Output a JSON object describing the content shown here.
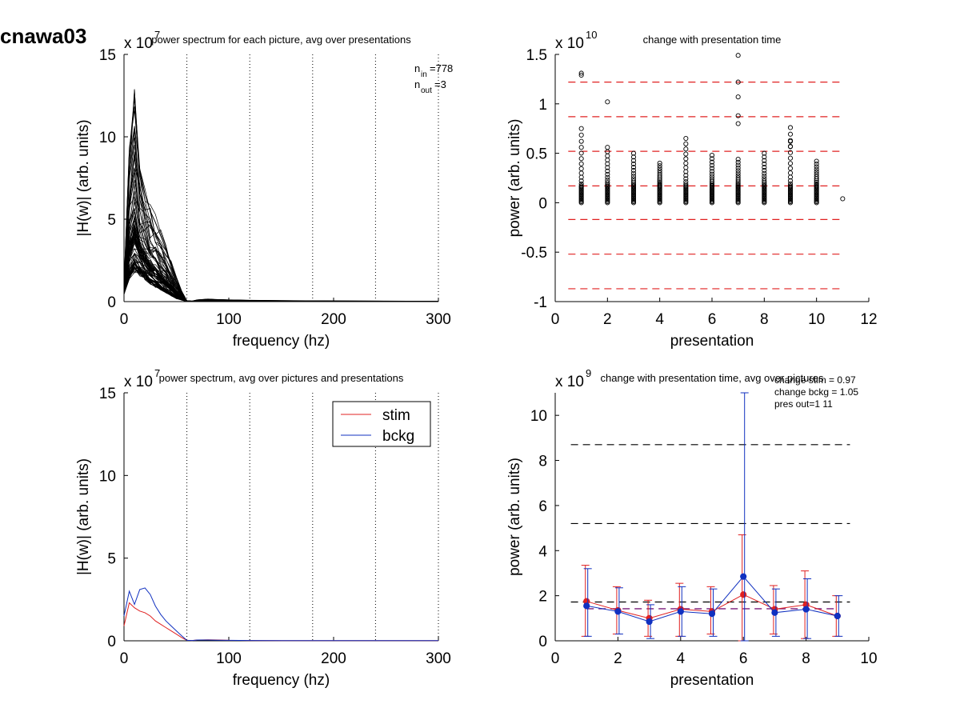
{
  "figure": {
    "title": "cnawa03"
  },
  "chart_data": [
    {
      "id": "p1",
      "type": "line",
      "title": "power spectrum for each picture, avg over presentations",
      "xlabel": "frequency (hz)",
      "ylabel": "|H(w)| (arb. units)",
      "yexp": "x 10^7",
      "yexp_base": "x 10",
      "yexp_power": "7",
      "xlim": [
        0,
        300
      ],
      "ylim": [
        0,
        15
      ],
      "xticks": [
        0,
        100,
        200,
        300
      ],
      "yticks": [
        0,
        5,
        10,
        15
      ],
      "vlines": [
        60,
        120,
        180,
        240,
        300
      ],
      "annotations": {
        "n_in": "n_in=778",
        "n_out": "n_out=3"
      },
      "annotation_parts": {
        "nin_base": "n",
        "nin_sub": "in",
        "nin_val": "=778",
        "nout_base": "n",
        "nout_sub": "out",
        "nout_val": "=3"
      },
      "series_count": 778,
      "freq": [
        0,
        5,
        10,
        15,
        20,
        25,
        30,
        35,
        40,
        45,
        50,
        55,
        60,
        65,
        70,
        80,
        90,
        100,
        120,
        150,
        200,
        250,
        300
      ],
      "envelope": {
        "max": [
          1.0,
          9.0,
          12.4,
          8.0,
          6.5,
          5.5,
          4.8,
          4.0,
          3.2,
          2.3,
          1.4,
          0.6,
          0.05,
          0.03,
          0.1,
          0.15,
          0.12,
          0.1,
          0.08,
          0.06,
          0.04,
          0.03,
          0.02
        ],
        "median": [
          0.5,
          1.5,
          2.0,
          1.8,
          1.5,
          1.2,
          1.0,
          0.8,
          0.6,
          0.4,
          0.2,
          0.1,
          0.01,
          0.01,
          0.03,
          0.04,
          0.03,
          0.02,
          0.02,
          0.01,
          0.01,
          0.01,
          0.01
        ]
      }
    },
    {
      "id": "p2",
      "type": "scatter",
      "title": "change with presentation time",
      "xlabel": "presentation",
      "ylabel": "power (arb. units)",
      "yexp": "x 10^10",
      "yexp_base": "x 10",
      "yexp_power": "10",
      "xlim": [
        0,
        12
      ],
      "ylim": [
        -1,
        1.5
      ],
      "xticks": [
        0,
        2,
        4,
        6,
        8,
        10,
        12
      ],
      "yticks": [
        -1,
        -0.5,
        0,
        0.5,
        1,
        1.5
      ],
      "hlines": [
        -0.87,
        -0.52,
        -0.17,
        0.17,
        0.52,
        0.87,
        1.22
      ],
      "hline_color": "#e02020",
      "points": [
        {
          "x": 1,
          "max": 0.75,
          "outliers": [
            1.29,
            1.31
          ]
        },
        {
          "x": 2,
          "max": 0.56,
          "outliers": [
            1.02
          ]
        },
        {
          "x": 3,
          "max": 0.5,
          "outliers": []
        },
        {
          "x": 4,
          "max": 0.4,
          "outliers": []
        },
        {
          "x": 5,
          "max": 0.65,
          "outliers": []
        },
        {
          "x": 6,
          "max": 0.48,
          "outliers": []
        },
        {
          "x": 7,
          "max": 0.44,
          "outliers": [
            1.49,
            1.22,
            1.07,
            0.88,
            0.8
          ]
        },
        {
          "x": 8,
          "max": 0.5,
          "outliers": []
        },
        {
          "x": 9,
          "max": 0.76,
          "outliers": [
            0.62,
            0.57
          ]
        },
        {
          "x": 10,
          "max": 0.42,
          "outliers": []
        },
        {
          "x": 11,
          "max": 0.04,
          "outliers": []
        }
      ]
    },
    {
      "id": "p3",
      "type": "line",
      "title": "power spectrum, avg over pictures and presentations",
      "xlabel": "frequency (hz)",
      "ylabel": "|H(w)| (arb. units)",
      "yexp": "x 10^7",
      "yexp_base": "x 10",
      "yexp_power": "7",
      "xlim": [
        0,
        300
      ],
      "ylim": [
        0,
        15
      ],
      "xticks": [
        0,
        100,
        200,
        300
      ],
      "yticks": [
        0,
        5,
        10,
        15
      ],
      "vlines": [
        60,
        120,
        180,
        240,
        300
      ],
      "legend_position": "top-right",
      "x": [
        0,
        5,
        10,
        15,
        20,
        25,
        30,
        35,
        40,
        45,
        50,
        55,
        60,
        65,
        70,
        80,
        90,
        100,
        120,
        150,
        200,
        250,
        300
      ],
      "series": [
        {
          "name": "stim",
          "color": "#e02020",
          "values": [
            0.9,
            2.3,
            2.0,
            1.8,
            1.7,
            1.5,
            1.2,
            1.0,
            0.8,
            0.6,
            0.4,
            0.2,
            0.03,
            0.02,
            0.05,
            0.06,
            0.05,
            0.03,
            0.02,
            0.01,
            0.01,
            0.01,
            0.01
          ]
        },
        {
          "name": "bckg",
          "color": "#1030c0",
          "values": [
            1.5,
            3.0,
            2.2,
            3.1,
            3.2,
            2.8,
            2.1,
            1.6,
            1.2,
            0.9,
            0.6,
            0.3,
            0.03,
            0.02,
            0.05,
            0.05,
            0.04,
            0.03,
            0.02,
            0.01,
            0.01,
            0.01,
            0.01
          ]
        }
      ]
    },
    {
      "id": "p4",
      "type": "line",
      "title": "change with presentation time, avg over pictures",
      "xlabel": "presentation",
      "ylabel": "power (arb. units)",
      "yexp": "x 10^9",
      "yexp_base": "x 10",
      "yexp_power": "9",
      "xlim": [
        0,
        10
      ],
      "ylim": [
        0,
        11
      ],
      "xticks": [
        0,
        2,
        4,
        6,
        8,
        10
      ],
      "yticks": [
        0,
        2,
        4,
        6,
        8,
        10
      ],
      "hlines": [
        1.72,
        5.2,
        8.7
      ],
      "mean_line": 1.42,
      "annotations": [
        "change stim = 0.97",
        "change bckg = 1.05",
        "pres out=1 11"
      ],
      "x": [
        1,
        2,
        3,
        4,
        5,
        6,
        7,
        8,
        9
      ],
      "series": [
        {
          "name": "stim",
          "color": "#e02020",
          "values": [
            1.75,
            1.35,
            1.0,
            1.4,
            1.3,
            2.05,
            1.4,
            1.6,
            1.1
          ],
          "err_low": [
            0.2,
            0.3,
            0.2,
            0.2,
            0.3,
            0.0,
            0.3,
            0.1,
            0.2
          ],
          "err_high": [
            3.35,
            2.4,
            1.8,
            2.55,
            2.4,
            4.7,
            2.45,
            3.1,
            2.0
          ]
        },
        {
          "name": "bckg",
          "color": "#1030c0",
          "values": [
            1.55,
            1.3,
            0.85,
            1.3,
            1.2,
            2.85,
            1.25,
            1.4,
            1.1
          ],
          "err_low": [
            0.2,
            0.3,
            0.1,
            0.2,
            0.2,
            0.0,
            0.2,
            0.1,
            0.2
          ],
          "err_high": [
            3.2,
            2.35,
            1.6,
            2.4,
            2.3,
            11.0,
            2.3,
            2.75,
            2.0
          ]
        }
      ]
    }
  ]
}
